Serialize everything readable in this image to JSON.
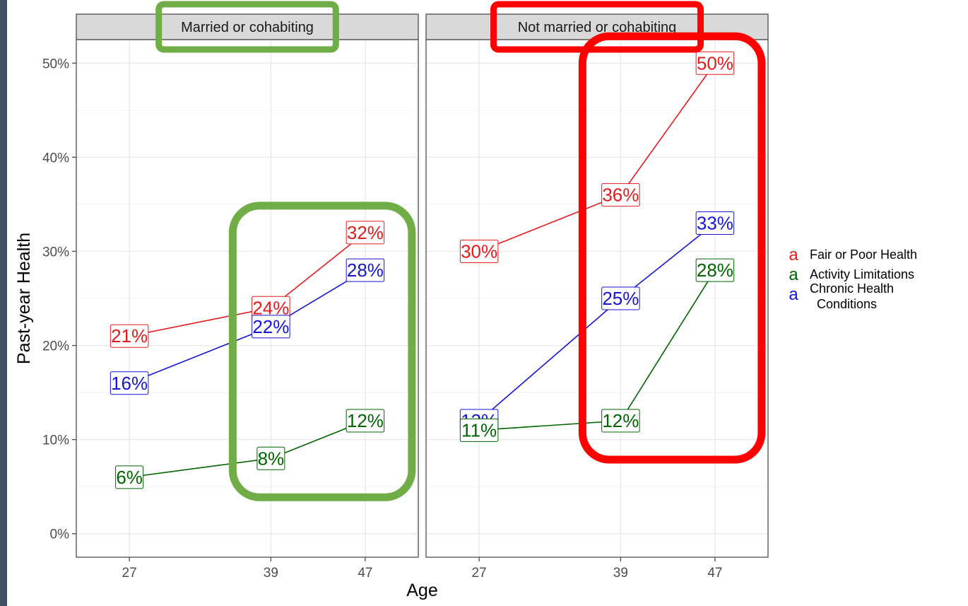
{
  "chart_data": {
    "type": "line",
    "xlabel": "Age",
    "ylabel": "Past-year Health",
    "x": [
      27,
      39,
      47
    ],
    "x_tick_labels": [
      "27",
      "39",
      "47"
    ],
    "xlim": [
      22.5,
      51.5
    ],
    "ylim": [
      -2.5,
      52.5
    ],
    "y_ticks": [
      0,
      10,
      20,
      30,
      40,
      50
    ],
    "y_tick_labels": [
      "0%",
      "10%",
      "20%",
      "30%",
      "40%",
      "50%"
    ],
    "grid": true,
    "legend_position": "right",
    "legend_key_glyph": "a",
    "legend": [
      {
        "label": "Fair or Poor Health",
        "color": "#e41a1c"
      },
      {
        "label": "Activity Limitations",
        "color": "#006400"
      },
      {
        "label": "Chronic Health",
        "label2": "Conditions",
        "color": "#1515d4"
      }
    ],
    "panels": [
      {
        "strip": "Married or cohabiting",
        "highlight_color": "#70ad47",
        "series": [
          {
            "name": "Fair or Poor Health",
            "color": "#e41a1c",
            "values": [
              21,
              24,
              32
            ],
            "labels": [
              "21%",
              "24%",
              "32%"
            ]
          },
          {
            "name": "Chronic Health Conditions",
            "color": "#1515d4",
            "values": [
              16,
              22,
              28
            ],
            "labels": [
              "16%",
              "22%",
              "28%"
            ]
          },
          {
            "name": "Activity Limitations",
            "color": "#006400",
            "values": [
              6,
              8,
              12
            ],
            "labels": [
              "6%",
              "8%",
              "12%"
            ]
          }
        ]
      },
      {
        "strip": "Not married or cohabiting",
        "highlight_color": "#ff0000",
        "series": [
          {
            "name": "Fair or Poor Health",
            "color": "#e41a1c",
            "values": [
              30,
              36,
              50
            ],
            "labels": [
              "30%",
              "36%",
              "50%"
            ]
          },
          {
            "name": "Chronic Health Conditions",
            "color": "#1515d4",
            "values": [
              12,
              25,
              33
            ],
            "labels": [
              "12%",
              "25%",
              "33%"
            ]
          },
          {
            "name": "Activity Limitations",
            "color": "#006400",
            "values": [
              11,
              12,
              28
            ],
            "labels": [
              "11%",
              "12%",
              "28%"
            ]
          }
        ]
      }
    ]
  }
}
